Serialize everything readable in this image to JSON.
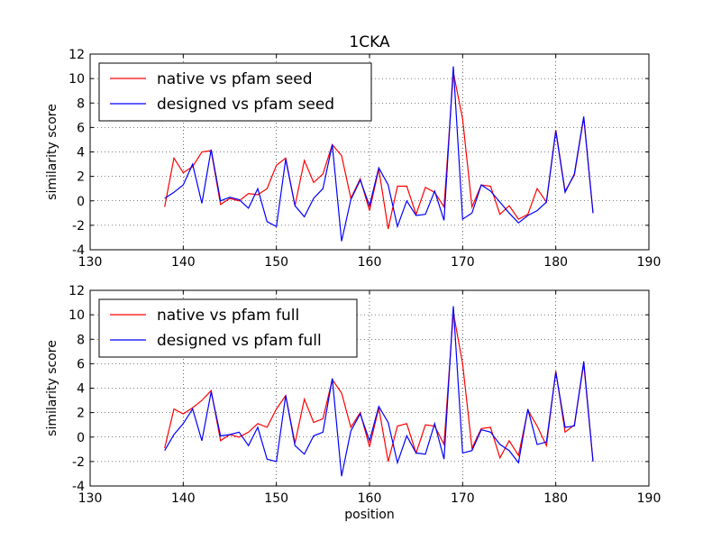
{
  "chart_data": [
    {
      "type": "line",
      "title": "1CKA",
      "xlabel": "",
      "ylabel": "similarity score",
      "xlim": [
        130,
        190
      ],
      "ylim": [
        -4,
        12
      ],
      "xticks": [
        130,
        140,
        150,
        160,
        170,
        180,
        190
      ],
      "yticks": [
        -4,
        -2,
        0,
        2,
        4,
        6,
        8,
        10,
        12
      ],
      "grid": true,
      "legend": "upper-left",
      "x": [
        138,
        139,
        140,
        141,
        142,
        143,
        144,
        145,
        146,
        147,
        148,
        149,
        150,
        151,
        152,
        153,
        154,
        155,
        156,
        157,
        158,
        159,
        160,
        161,
        162,
        163,
        164,
        165,
        166,
        167,
        168,
        169,
        170,
        171,
        172,
        173,
        174,
        175,
        176,
        177,
        178,
        179,
        180,
        181,
        182,
        183,
        184
      ],
      "series": [
        {
          "name": "native vs pfam seed",
          "color": "#ff0000",
          "values": [
            -0.5,
            3.5,
            2.3,
            2.8,
            4.0,
            4.1,
            -0.3,
            0.2,
            0.0,
            0.6,
            0.5,
            1.0,
            2.9,
            3.5,
            -0.4,
            3.3,
            1.5,
            2.2,
            4.6,
            3.7,
            0.2,
            1.8,
            -0.8,
            2.6,
            -2.3,
            1.2,
            1.2,
            -1.1,
            1.1,
            0.7,
            -0.5,
            10.5,
            6.7,
            -0.5,
            1.3,
            1.2,
            -1.1,
            -0.4,
            -1.5,
            -1.1,
            1.0,
            -0.1,
            5.8,
            0.8,
            2.1,
            6.8,
            -1.0
          ]
        },
        {
          "name": "designed vs pfam seed",
          "color": "#0000ff",
          "values": [
            0.2,
            0.7,
            1.3,
            3.0,
            -0.2,
            4.2,
            0.0,
            0.3,
            0.1,
            -0.6,
            1.0,
            -1.7,
            -2.1,
            3.4,
            -0.4,
            -1.3,
            0.2,
            1.0,
            4.6,
            -3.3,
            0.1,
            1.7,
            -0.4,
            2.7,
            1.3,
            -2.1,
            0.0,
            -1.2,
            -1.1,
            0.8,
            -1.6,
            11.0,
            -1.5,
            -1.0,
            1.3,
            0.8,
            -0.1,
            -1.0,
            -1.8,
            -1.2,
            -0.8,
            -0.1,
            5.7,
            0.7,
            2.2,
            6.9,
            -1.0
          ]
        }
      ]
    },
    {
      "type": "line",
      "title": "",
      "xlabel": "position",
      "ylabel": "similarity score",
      "xlim": [
        130,
        190
      ],
      "ylim": [
        -4,
        12
      ],
      "xticks": [
        130,
        140,
        150,
        160,
        170,
        180,
        190
      ],
      "yticks": [
        -4,
        -2,
        0,
        2,
        4,
        6,
        8,
        10,
        12
      ],
      "grid": true,
      "legend": "upper-left",
      "x": [
        138,
        139,
        140,
        141,
        142,
        143,
        144,
        145,
        146,
        147,
        148,
        149,
        150,
        151,
        152,
        153,
        154,
        155,
        156,
        157,
        158,
        159,
        160,
        161,
        162,
        163,
        164,
        165,
        166,
        167,
        168,
        169,
        170,
        171,
        172,
        173,
        174,
        175,
        176,
        177,
        178,
        179,
        180,
        181,
        182,
        183,
        184
      ],
      "series": [
        {
          "name": "native vs pfam full",
          "color": "#ff0000",
          "values": [
            -0.9,
            2.3,
            1.9,
            2.4,
            3.0,
            3.8,
            -0.3,
            0.2,
            0.0,
            0.4,
            1.1,
            0.8,
            2.3,
            3.4,
            -0.5,
            3.1,
            1.2,
            1.5,
            4.7,
            3.6,
            0.8,
            2.0,
            -0.8,
            2.4,
            -2.0,
            0.9,
            1.1,
            -1.3,
            1.0,
            0.9,
            -0.6,
            10.2,
            6.0,
            -0.9,
            0.7,
            0.8,
            -1.7,
            -0.3,
            -1.5,
            2.2,
            0.9,
            -0.7,
            5.4,
            0.4,
            1.0,
            6.0,
            -2.0
          ]
        },
        {
          "name": "designed vs pfam full",
          "color": "#0000ff",
          "values": [
            -1.1,
            0.2,
            1.1,
            2.3,
            -0.3,
            3.7,
            0.1,
            0.2,
            0.4,
            -0.7,
            0.8,
            -1.8,
            -2.0,
            3.4,
            -0.7,
            -1.4,
            0.1,
            0.4,
            4.8,
            -3.2,
            0.5,
            1.9,
            -0.3,
            2.5,
            1.2,
            -2.1,
            0.1,
            -1.3,
            -1.4,
            1.1,
            -1.8,
            10.7,
            -1.3,
            -1.1,
            0.6,
            0.4,
            -0.6,
            -1.1,
            -2.1,
            2.3,
            -0.6,
            -0.4,
            5.3,
            0.8,
            0.9,
            6.2,
            -2.0
          ]
        }
      ]
    }
  ]
}
